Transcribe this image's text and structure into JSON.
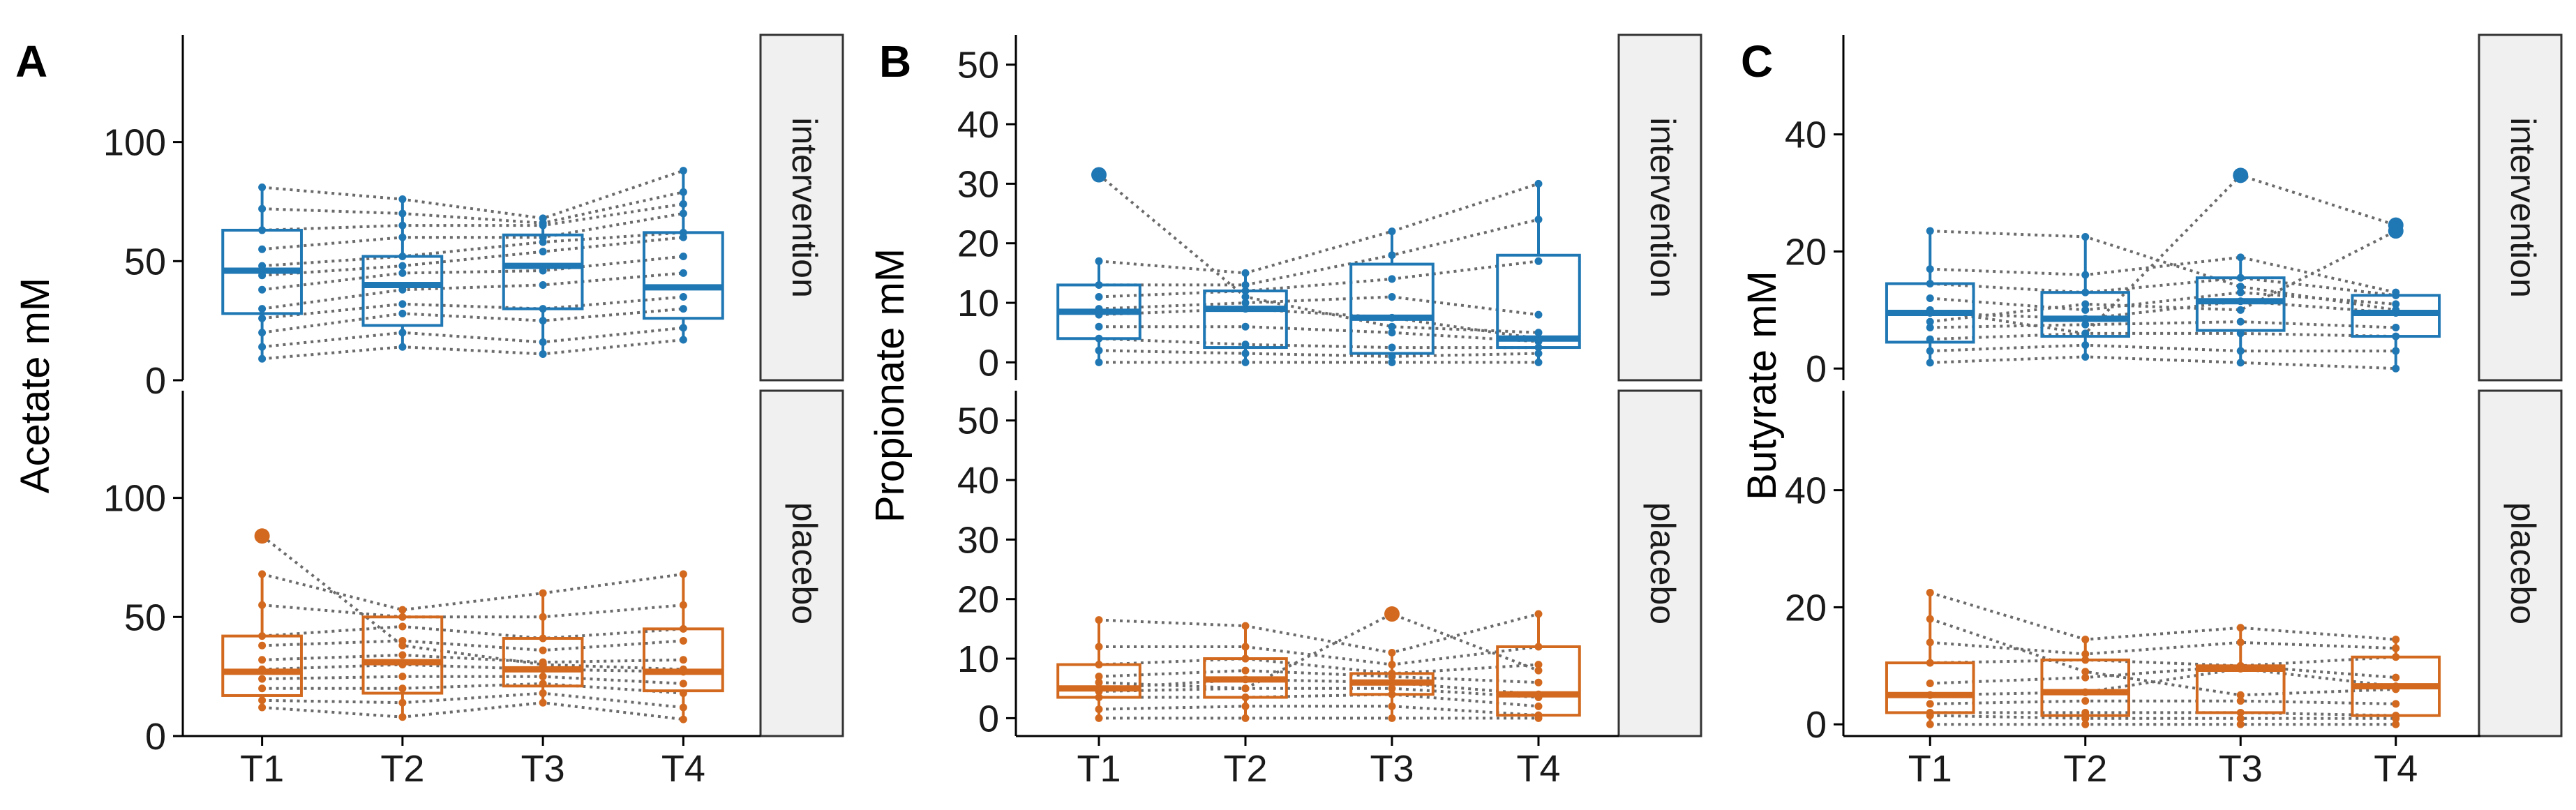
{
  "colors": {
    "intervention": "#1f77b4",
    "placebo": "#d2691e",
    "trajectory": "#6b6b6b"
  },
  "chart_data": [
    {
      "type": "box",
      "panel_letter": "A",
      "ylabel": "Acetate mM",
      "ylim": [
        0,
        145
      ],
      "yticks": [
        0,
        50,
        100
      ],
      "categories": [
        "T1",
        "T2",
        "T3",
        "T4"
      ],
      "facets": [
        {
          "name": "intervention",
          "color": "intervention",
          "boxes": [
            {
              "q1": 28,
              "median": 46,
              "q3": 63,
              "low": 9,
              "high": 81,
              "outliers": []
            },
            {
              "q1": 23,
              "median": 40,
              "q3": 52,
              "low": 14,
              "high": 76,
              "outliers": []
            },
            {
              "q1": 30,
              "median": 48,
              "q3": 61,
              "low": 11,
              "high": 68,
              "outliers": []
            },
            {
              "q1": 26,
              "median": 39,
              "q3": 62,
              "low": 17,
              "high": 88,
              "outliers": []
            }
          ],
          "points": [
            [
              9,
              14,
              11,
              17
            ],
            [
              14,
              20,
              16,
              22
            ],
            [
              20,
              28,
              25,
              30
            ],
            [
              26,
              32,
              30,
              35
            ],
            [
              30,
              38,
              40,
              45
            ],
            [
              38,
              45,
              46,
              52
            ],
            [
              44,
              48,
              54,
              60
            ],
            [
              48,
              52,
              58,
              62
            ],
            [
              55,
              60,
              60,
              70
            ],
            [
              63,
              65,
              65,
              74
            ],
            [
              72,
              70,
              66,
              79
            ],
            [
              81,
              76,
              68,
              88
            ]
          ]
        },
        {
          "name": "placebo",
          "color": "placebo",
          "boxes": [
            {
              "q1": 17,
              "median": 27,
              "q3": 42,
              "low": 12,
              "high": 68,
              "outliers": [
                84
              ]
            },
            {
              "q1": 18,
              "median": 31,
              "q3": 50,
              "low": 8,
              "high": 53,
              "outliers": []
            },
            {
              "q1": 21,
              "median": 28,
              "q3": 41,
              "low": 14,
              "high": 60,
              "outliers": []
            },
            {
              "q1": 19,
              "median": 27,
              "q3": 45,
              "low": 7,
              "high": 68,
              "outliers": []
            }
          ],
          "points": [
            [
              12,
              8,
              14,
              7
            ],
            [
              15,
              14,
              18,
              12
            ],
            [
              20,
              20,
              22,
              18
            ],
            [
              24,
              25,
              25,
              22
            ],
            [
              28,
              30,
              28,
              27
            ],
            [
              32,
              34,
              31,
              32
            ],
            [
              38,
              40,
              36,
              40
            ],
            [
              42,
              46,
              41,
              45
            ],
            [
              55,
              50,
              50,
              55
            ],
            [
              68,
              53,
              60,
              68
            ],
            [
              84,
              38,
              30,
              28
            ]
          ]
        }
      ]
    },
    {
      "type": "box",
      "panel_letter": "B",
      "ylabel": "Propionate mM",
      "ylim": [
        -3,
        55
      ],
      "yticks": [
        0,
        10,
        20,
        30,
        40,
        50
      ],
      "categories": [
        "T1",
        "T2",
        "T3",
        "T4"
      ],
      "facets": [
        {
          "name": "intervention",
          "color": "intervention",
          "boxes": [
            {
              "q1": 4,
              "median": 8.5,
              "q3": 13,
              "low": 0,
              "high": 17,
              "outliers": [
                31.5
              ]
            },
            {
              "q1": 2.5,
              "median": 9,
              "q3": 12,
              "low": 0,
              "high": 15,
              "outliers": []
            },
            {
              "q1": 1.5,
              "median": 7.5,
              "q3": 16.5,
              "low": 0,
              "high": 22,
              "outliers": []
            },
            {
              "q1": 2.5,
              "median": 4,
              "q3": 18,
              "low": 0,
              "high": 30,
              "outliers": []
            }
          ],
          "points": [
            [
              0,
              0,
              0,
              0
            ],
            [
              2,
              1.5,
              1,
              1.5
            ],
            [
              4,
              3,
              2.5,
              2.5
            ],
            [
              6,
              6,
              5,
              3.5
            ],
            [
              8,
              9,
              7.5,
              4
            ],
            [
              9,
              10,
              11,
              8
            ],
            [
              11,
              12,
              14,
              17
            ],
            [
              13,
              13,
              18,
              24
            ],
            [
              17,
              15,
              22,
              30
            ],
            [
              31.5,
              11,
              6,
              5
            ]
          ]
        },
        {
          "name": "placebo",
          "color": "placebo",
          "boxes": [
            {
              "q1": 3.5,
              "median": 5,
              "q3": 9,
              "low": 0,
              "high": 16.5,
              "outliers": []
            },
            {
              "q1": 3.5,
              "median": 6.5,
              "q3": 10,
              "low": 0,
              "high": 15.5,
              "outliers": []
            },
            {
              "q1": 4,
              "median": 6,
              "q3": 7.5,
              "low": 0,
              "high": 11,
              "outliers": [
                17.5
              ]
            },
            {
              "q1": 0.5,
              "median": 4,
              "q3": 12,
              "low": 0,
              "high": 17.5,
              "outliers": []
            }
          ],
          "points": [
            [
              0,
              0,
              0,
              0
            ],
            [
              1.5,
              2,
              2,
              0.5
            ],
            [
              3.5,
              3.5,
              4,
              2
            ],
            [
              4.5,
              5,
              5,
              3.5
            ],
            [
              5,
              6.5,
              6,
              4
            ],
            [
              7,
              8,
              7,
              6
            ],
            [
              9,
              10,
              7.5,
              9
            ],
            [
              12,
              12,
              9,
              12
            ],
            [
              16.5,
              15.5,
              11,
              17.5
            ],
            [
              6,
              5,
              17.5,
              8
            ]
          ]
        }
      ]
    },
    {
      "type": "box",
      "panel_letter": "C",
      "ylabel": "Butyrate mM",
      "ylim": [
        -2,
        57
      ],
      "yticks": [
        0,
        20,
        40
      ],
      "categories": [
        "T1",
        "T2",
        "T3",
        "T4"
      ],
      "facets": [
        {
          "name": "intervention",
          "color": "intervention",
          "boxes": [
            {
              "q1": 4.5,
              "median": 9.5,
              "q3": 14.5,
              "low": 1,
              "high": 23.5,
              "outliers": []
            },
            {
              "q1": 5.5,
              "median": 8.5,
              "q3": 13,
              "low": 2,
              "high": 22.5,
              "outliers": []
            },
            {
              "q1": 6.5,
              "median": 11.5,
              "q3": 15.5,
              "low": 1,
              "high": 19,
              "outliers": [
                33
              ]
            },
            {
              "q1": 5.5,
              "median": 9.5,
              "q3": 12.5,
              "low": 0,
              "high": 13,
              "outliers": [
                23.5,
                24.5
              ]
            }
          ],
          "points": [
            [
              1,
              2,
              1,
              0
            ],
            [
              3,
              4,
              3,
              3
            ],
            [
              5,
              6,
              6,
              5.5
            ],
            [
              7,
              7.5,
              8,
              7
            ],
            [
              9.5,
              8.5,
              11.5,
              9.5
            ],
            [
              12,
              10,
              13,
              11
            ],
            [
              14.5,
              13,
              15.5,
              12.5
            ],
            [
              17,
              16,
              19,
              13
            ],
            [
              23.5,
              22.5,
              14,
              10
            ],
            [
              10,
              6,
              33,
              24.5
            ],
            [
              8,
              11,
              10,
              23.5
            ]
          ]
        },
        {
          "name": "placebo",
          "color": "placebo",
          "boxes": [
            {
              "q1": 2,
              "median": 5,
              "q3": 10.5,
              "low": 0,
              "high": 22.5,
              "outliers": []
            },
            {
              "q1": 1.5,
              "median": 5.5,
              "q3": 11,
              "low": 0,
              "high": 14.5,
              "outliers": []
            },
            {
              "q1": 2,
              "median": 9.5,
              "q3": 10,
              "low": 0,
              "high": 16.5,
              "outliers": []
            },
            {
              "q1": 1.5,
              "median": 6.5,
              "q3": 11.5,
              "low": 0,
              "high": 14.5,
              "outliers": []
            }
          ],
          "points": [
            [
              0,
              0,
              0,
              0
            ],
            [
              1.5,
              1,
              1,
              1
            ],
            [
              2,
              2,
              2,
              1.5
            ],
            [
              3.5,
              4,
              4,
              3.5
            ],
            [
              5,
              5.5,
              9.5,
              6.5
            ],
            [
              7,
              8,
              10,
              8
            ],
            [
              10.5,
              11,
              10,
              11.5
            ],
            [
              14,
              12,
              14,
              13
            ],
            [
              22.5,
              14.5,
              16.5,
              14.5
            ],
            [
              18,
              9,
              5,
              6
            ]
          ]
        }
      ]
    }
  ]
}
